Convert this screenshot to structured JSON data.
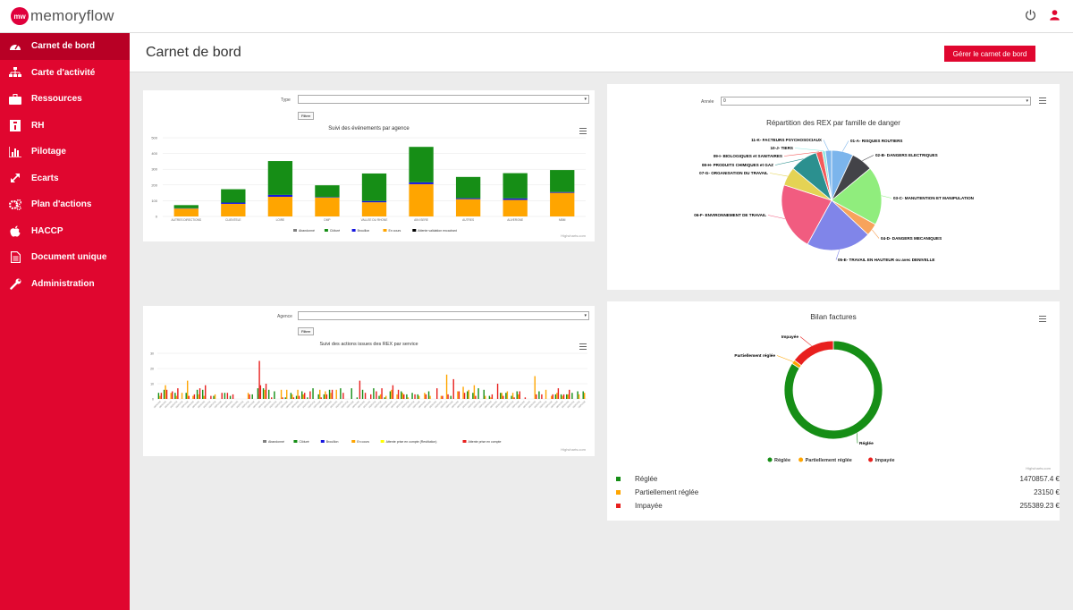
{
  "app": {
    "logo_mark": "mw",
    "logo_text": "memoryflow"
  },
  "sidebar": {
    "items": [
      {
        "label": "Carnet de bord",
        "icon": "dashboard-icon",
        "active": true
      },
      {
        "label": "Carte d'activité",
        "icon": "sitemap-icon"
      },
      {
        "label": "Ressources",
        "icon": "briefcase-icon"
      },
      {
        "label": "RH",
        "icon": "id-card-icon"
      },
      {
        "label": "Pilotage",
        "icon": "bar-chart-icon"
      },
      {
        "label": "Ecarts",
        "icon": "expand-arrows-icon"
      },
      {
        "label": "Plan d'actions",
        "icon": "gears-icon"
      },
      {
        "label": "HACCP",
        "icon": "apple-icon"
      },
      {
        "label": "Document unique",
        "icon": "document-icon"
      },
      {
        "label": "Administration",
        "icon": "wrench-icon"
      }
    ]
  },
  "header": {
    "title": "Carnet de bord",
    "manage_button": "Gérer le carnet de bord"
  },
  "top_icons": [
    "power-icon",
    "user-icon"
  ],
  "colors": {
    "brand": "#e0062f",
    "abandonne": "#808080",
    "cloture": "#168e16",
    "brouillon": "#1515e0",
    "en_cours": "#ffa500",
    "attente_validation": "#000000",
    "attente_restitution": "#ffff00",
    "attente_prise": "#e8201e"
  },
  "panel1": {
    "filter_label": "Type",
    "filter_value": "",
    "filter_button": "Filtrer",
    "credits": "Highcharts.com",
    "chart_data": {
      "type": "bar",
      "title": "Suivi des événements par agence",
      "categories": [
        "AUTRES DIRECTIONS",
        "CLIENTELE",
        "LOIRE",
        "DMP",
        "VALLEE DU RHONE",
        "AIN ISERE",
        "AUTRES",
        "AUVERGNE",
        "MBM"
      ],
      "ylim": [
        0,
        500
      ],
      "yticks": [
        0,
        100,
        200,
        300,
        400,
        500
      ],
      "series": [
        {
          "name": "Abandonné",
          "values": [
            0,
            0,
            0,
            0,
            0,
            0,
            0,
            0,
            0
          ]
        },
        {
          "name": "Clôturé",
          "values": [
            20,
            85,
            215,
            75,
            175,
            225,
            135,
            160,
            140
          ]
        },
        {
          "name": "Brouillon",
          "values": [
            2,
            8,
            12,
            3,
            8,
            12,
            6,
            10,
            5
          ]
        },
        {
          "name": "En cours",
          "values": [
            50,
            80,
            125,
            120,
            90,
            205,
            110,
            105,
            150
          ]
        },
        {
          "name": "Attente validation encadrant",
          "values": [
            0,
            0,
            0,
            0,
            0,
            0,
            0,
            0,
            0
          ]
        }
      ]
    }
  },
  "panel2": {
    "filter_label": "Année",
    "filter_value": "0",
    "chart_data": {
      "type": "pie",
      "title": "Répartition des REX par famille de danger",
      "slices": [
        {
          "label": "01-A- RISQUES ROUTIERS",
          "value": 7,
          "color": "#7cb5ec"
        },
        {
          "label": "02-B- DANGERS ELECTRIQUES",
          "value": 7,
          "color": "#434348"
        },
        {
          "label": "03-C- MANUTENTION ET MANIPULATION",
          "value": 19,
          "color": "#90ed7d"
        },
        {
          "label": "04-D- DANGERS MECANIQUES",
          "value": 4,
          "color": "#f7a35c"
        },
        {
          "label": "05-E- TRAVAIL EN HAUTEUR ou avec DENIVELLE",
          "value": 21,
          "color": "#8085e9"
        },
        {
          "label": "06-F- ENVIRONNEMENT DE TRAVAIL",
          "value": 22,
          "color": "#f15c80"
        },
        {
          "label": "07-G- ORGANISATION DU TRAVAIL",
          "value": 6,
          "color": "#e4d354"
        },
        {
          "label": "08-H- PRODUITS CHIMIQUES et GAZ",
          "value": 9,
          "color": "#2b908f"
        },
        {
          "label": "09-I- BIOLOGIQUES et SANITAIRES",
          "value": 2,
          "color": "#f45b5b"
        },
        {
          "label": "10-J- TIERS",
          "value": 1,
          "color": "#91e8e1"
        },
        {
          "label": "11-K- FACTEURS PSYCHOSOCIAUX",
          "value": 2,
          "color": "#7cb5ec"
        }
      ]
    }
  },
  "panel3": {
    "filter_label": "Agence",
    "filter_value": "",
    "filter_button": "Filtrer",
    "credits": "Highcharts.com",
    "chart_data": {
      "type": "bar",
      "title": "Suivi des actions issues des REX par service",
      "ylim": [
        0,
        30
      ],
      "yticks": [
        0,
        10,
        20,
        30
      ],
      "legend": [
        "Abandonné",
        "Clôturé",
        "Brouillon",
        "En cours",
        "Attente prise en compte (Restitution)",
        "Attente prise en compte"
      ]
    }
  },
  "panel4": {
    "credits": "Highcharts.com",
    "chart_data": {
      "type": "pie",
      "title": "Bilan factures",
      "slices": [
        {
          "label": "Réglée",
          "value": 1470857.4,
          "color": "#168e16"
        },
        {
          "label": "Partiellement réglée",
          "value": 23150,
          "color": "#ffa500"
        },
        {
          "label": "Impayée",
          "value": 255389.23,
          "color": "#e8201e"
        }
      ]
    },
    "table": [
      {
        "label": "Réglée",
        "value": "1470857.4 €",
        "color": "#168e16"
      },
      {
        "label": "Partiellement réglée",
        "value": "23150 €",
        "color": "#ffa500"
      },
      {
        "label": "Impayée",
        "value": "255389.23 €",
        "color": "#e8201e"
      }
    ]
  }
}
